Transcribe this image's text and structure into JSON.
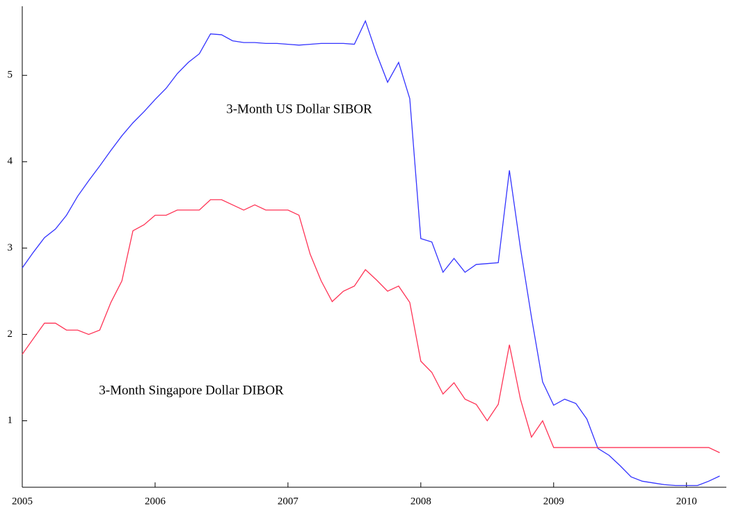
{
  "chart_data": {
    "type": "line",
    "x": [
      2005,
      2005.083,
      2005.167,
      2005.25,
      2005.333,
      2005.417,
      2005.5,
      2005.583,
      2005.667,
      2005.75,
      2005.833,
      2005.917,
      2006,
      2006.083,
      2006.167,
      2006.25,
      2006.333,
      2006.417,
      2006.5,
      2006.583,
      2006.667,
      2006.75,
      2006.833,
      2006.917,
      2007,
      2007.083,
      2007.167,
      2007.25,
      2007.333,
      2007.417,
      2007.5,
      2007.583,
      2007.667,
      2007.75,
      2007.833,
      2007.917,
      2008,
      2008.083,
      2008.167,
      2008.25,
      2008.333,
      2008.417,
      2008.5,
      2008.583,
      2008.667,
      2008.75,
      2008.833,
      2008.917,
      2009,
      2009.083,
      2009.167,
      2009.25,
      2009.333,
      2009.417,
      2009.5,
      2009.583,
      2009.667,
      2009.75,
      2009.833,
      2009.917,
      2010,
      2010.083,
      2010.167,
      2010.25
    ],
    "series": [
      {
        "name": "3-Month US Dollar SIBOR",
        "color": "#3333ff",
        "values": [
          2.77,
          2.95,
          3.12,
          3.22,
          3.38,
          3.6,
          3.78,
          3.95,
          4.13,
          4.3,
          4.45,
          4.58,
          4.72,
          4.85,
          5.02,
          5.15,
          5.25,
          5.48,
          5.47,
          5.4,
          5.38,
          5.38,
          5.37,
          5.37,
          5.36,
          5.35,
          5.36,
          5.37,
          5.37,
          5.37,
          5.36,
          5.63,
          5.25,
          4.92,
          5.15,
          4.73,
          3.11,
          3.07,
          2.72,
          2.88,
          2.72,
          2.81,
          2.82,
          2.83,
          3.9,
          3.0,
          2.2,
          1.45,
          1.18,
          1.25,
          1.2,
          1.02,
          0.68,
          0.6,
          0.48,
          0.35,
          0.3,
          0.28,
          0.26,
          0.25,
          0.25,
          0.25,
          0.3,
          0.36
        ]
      },
      {
        "name": "3-Month Singapore Dollar DIBOR",
        "color": "#ff3355",
        "values": [
          1.77,
          1.95,
          2.13,
          2.13,
          2.05,
          2.05,
          2.0,
          2.05,
          2.37,
          2.62,
          3.2,
          3.27,
          3.38,
          3.38,
          3.44,
          3.44,
          3.44,
          3.56,
          3.56,
          3.5,
          3.44,
          3.5,
          3.44,
          3.44,
          3.44,
          3.38,
          2.93,
          2.62,
          2.38,
          2.5,
          2.56,
          2.75,
          2.63,
          2.5,
          2.56,
          2.37,
          1.69,
          1.56,
          1.31,
          1.44,
          1.25,
          1.19,
          1.0,
          1.19,
          1.88,
          1.25,
          0.81,
          1.0,
          0.69,
          0.69,
          0.69,
          0.69,
          0.69,
          0.69,
          0.69,
          0.69,
          0.69,
          0.69,
          0.69,
          0.69,
          0.69,
          0.69,
          0.69,
          0.63
        ]
      }
    ],
    "xlim": [
      2005,
      2010.3
    ],
    "xticks": [
      2005,
      2006,
      2007,
      2008,
      2009,
      2010
    ],
    "ylim": [
      0.23,
      5.8
    ],
    "yticks": [
      1,
      2,
      3,
      4,
      5
    ]
  }
}
